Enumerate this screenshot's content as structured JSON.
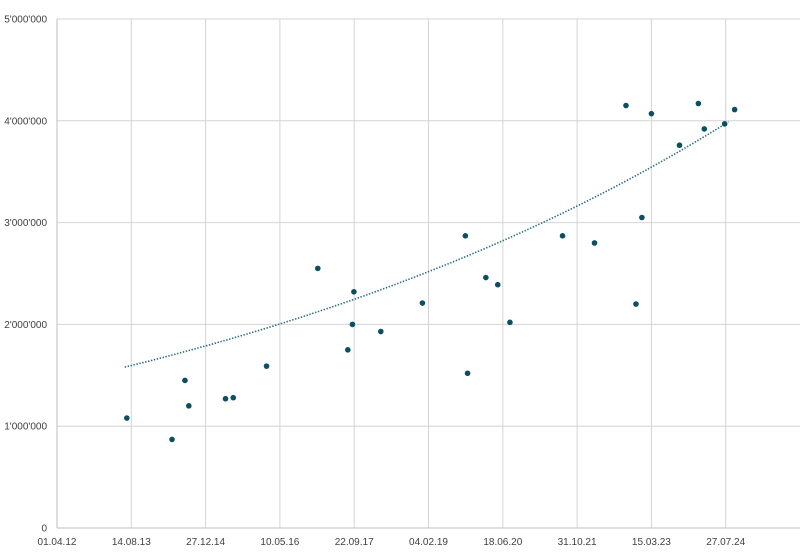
{
  "chart_data": {
    "type": "scatter",
    "title": "",
    "xlabel": "",
    "ylabel": "",
    "x_axis": {
      "type": "date",
      "min": "2012-04-01",
      "max": "2025-12-09",
      "tick_labels": [
        "01.04.12",
        "14.08.13",
        "27.12.14",
        "10.05.16",
        "22.09.17",
        "04.02.19",
        "18.06.20",
        "31.10.21",
        "15.03.23",
        "27.07.24"
      ]
    },
    "y_axis": {
      "min": 0,
      "max": 5000000,
      "tick_labels": [
        "0",
        "1'000'000",
        "2'000'000",
        "3'000'000",
        "4'000'000",
        "5'000'000"
      ]
    },
    "grid": true,
    "legend": "none",
    "marker_color": "#0b4f60",
    "trendline": {
      "type": "exponential",
      "color": "#2a6b80",
      "start": {
        "x": "2013-07-01",
        "y": 1580000
      },
      "end": {
        "x": "2024-08-15",
        "y": 3990000
      }
    },
    "series": [
      {
        "points": [
          {
            "x": "2013-07-15",
            "y": 1080000
          },
          {
            "x": "2014-05-15",
            "y": 870000
          },
          {
            "x": "2014-08-10",
            "y": 1450000
          },
          {
            "x": "2014-09-05",
            "y": 1200000
          },
          {
            "x": "2015-05-10",
            "y": 1270000
          },
          {
            "x": "2015-07-01",
            "y": 1280000
          },
          {
            "x": "2016-02-10",
            "y": 1590000
          },
          {
            "x": "2017-01-20",
            "y": 2550000
          },
          {
            "x": "2017-08-10",
            "y": 1750000
          },
          {
            "x": "2017-09-10",
            "y": 2000000
          },
          {
            "x": "2017-09-20",
            "y": 2320000
          },
          {
            "x": "2018-03-20",
            "y": 1930000
          },
          {
            "x": "2018-12-25",
            "y": 2210000
          },
          {
            "x": "2019-10-10",
            "y": 2870000
          },
          {
            "x": "2019-10-25",
            "y": 1520000
          },
          {
            "x": "2020-02-25",
            "y": 2460000
          },
          {
            "x": "2020-05-15",
            "y": 2390000
          },
          {
            "x": "2020-08-05",
            "y": 2020000
          },
          {
            "x": "2021-07-25",
            "y": 2870000
          },
          {
            "x": "2022-02-25",
            "y": 2800000
          },
          {
            "x": "2022-09-25",
            "y": 4150000
          },
          {
            "x": "2022-12-01",
            "y": 2200000
          },
          {
            "x": "2023-01-10",
            "y": 3050000
          },
          {
            "x": "2023-03-15",
            "y": 4070000
          },
          {
            "x": "2023-09-20",
            "y": 3760000
          },
          {
            "x": "2024-01-25",
            "y": 4170000
          },
          {
            "x": "2024-03-05",
            "y": 3920000
          },
          {
            "x": "2024-07-20",
            "y": 3970000
          },
          {
            "x": "2024-09-25",
            "y": 4110000
          }
        ]
      }
    ]
  }
}
